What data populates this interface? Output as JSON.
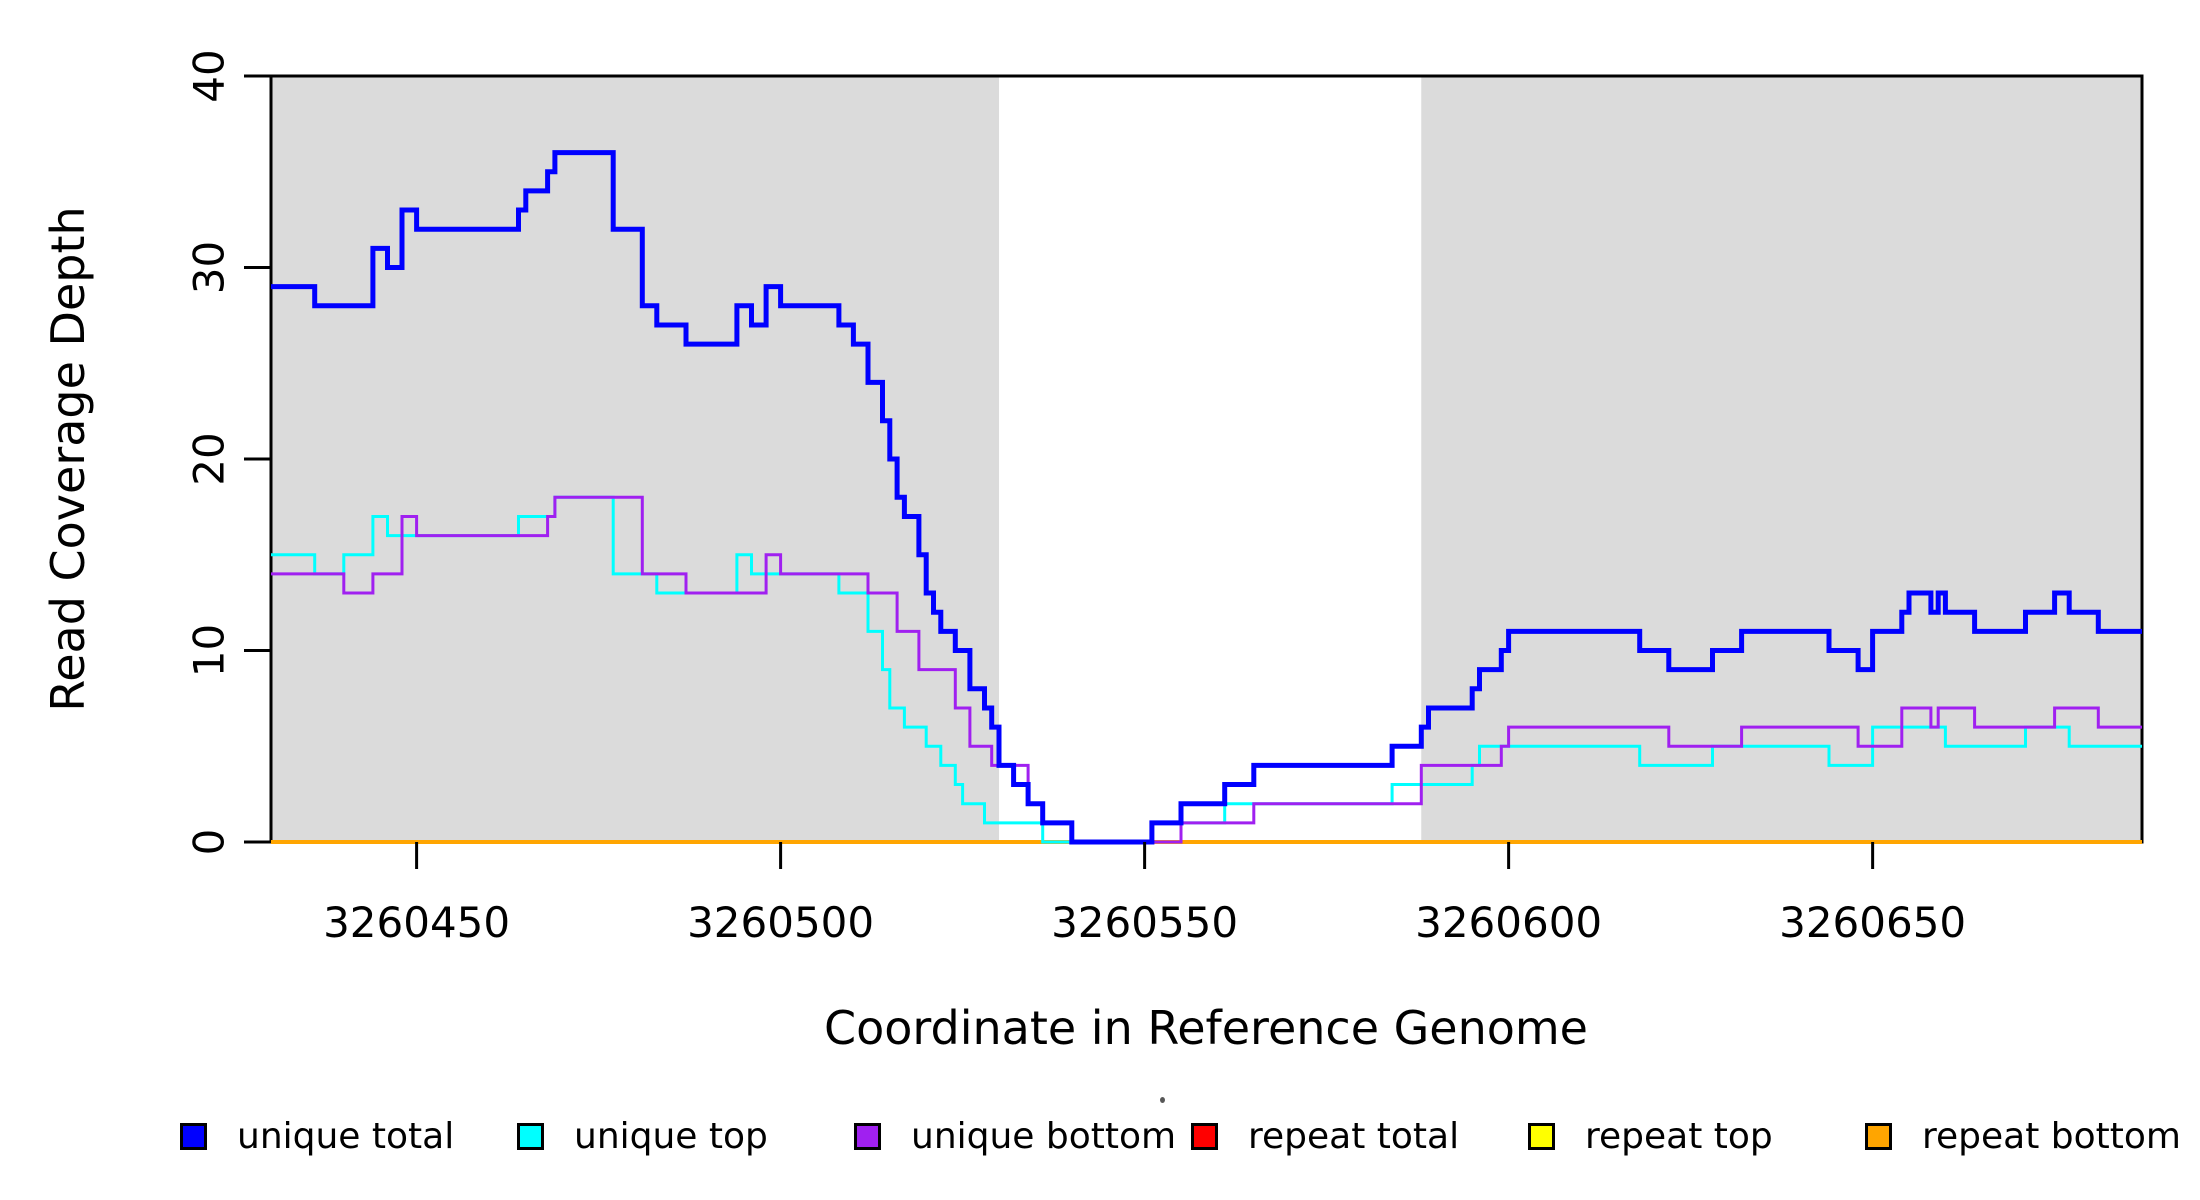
{
  "chart_data": {
    "type": "line",
    "subtype": "step-post",
    "title": "",
    "xlabel": "Coordinate in Reference Genome",
    "ylabel": "Read Coverage Depth",
    "xlim": [
      3260430,
      3260687
    ],
    "ylim": [
      0,
      40
    ],
    "x_ticks": [
      3260450,
      3260500,
      3260550,
      3260600,
      3260650
    ],
    "y_ticks": [
      0,
      10,
      20,
      30,
      40
    ],
    "grid": false,
    "legend_position": "bottom",
    "shade_color": "#dbdbdb",
    "background_color": "#ffffff",
    "shaded_regions": [
      {
        "x0": 3260430,
        "x1": 3260530
      },
      {
        "x0": 3260588,
        "x1": 3260687
      }
    ],
    "series": [
      {
        "name": "repeat total",
        "color": "#ff0000",
        "width": 4,
        "steps": [
          [
            3260430,
            0
          ]
        ]
      },
      {
        "name": "repeat top",
        "color": "#ffff00",
        "width": 4,
        "steps": [
          [
            3260430,
            0
          ]
        ]
      },
      {
        "name": "repeat bottom",
        "color": "#ffa500",
        "width": 4,
        "steps": [
          [
            3260430,
            0
          ]
        ]
      },
      {
        "name": "unique top",
        "color": "#00ffff",
        "width": 3,
        "steps": [
          [
            3260430,
            15
          ],
          [
            3260436,
            14
          ],
          [
            3260440,
            15
          ],
          [
            3260444,
            17
          ],
          [
            3260446,
            16
          ],
          [
            3260464,
            17
          ],
          [
            3260469,
            18
          ],
          [
            3260477,
            14
          ],
          [
            3260483,
            13
          ],
          [
            3260494,
            15
          ],
          [
            3260496,
            14
          ],
          [
            3260508,
            13
          ],
          [
            3260512,
            11
          ],
          [
            3260514,
            9
          ],
          [
            3260515,
            7
          ],
          [
            3260517,
            6
          ],
          [
            3260520,
            5
          ],
          [
            3260522,
            4
          ],
          [
            3260524,
            3
          ],
          [
            3260525,
            2
          ],
          [
            3260528,
            1
          ],
          [
            3260536,
            0
          ],
          [
            3260551,
            1
          ],
          [
            3260561,
            2
          ],
          [
            3260584,
            3
          ],
          [
            3260595,
            4
          ],
          [
            3260596,
            5
          ],
          [
            3260618,
            4
          ],
          [
            3260628,
            5
          ],
          [
            3260644,
            4
          ],
          [
            3260650,
            6
          ],
          [
            3260660,
            5
          ],
          [
            3260671,
            6
          ],
          [
            3260677,
            5
          ]
        ]
      },
      {
        "name": "unique bottom",
        "color": "#a020f0",
        "width": 3,
        "steps": [
          [
            3260430,
            14
          ],
          [
            3260440,
            13
          ],
          [
            3260444,
            14
          ],
          [
            3260448,
            17
          ],
          [
            3260450,
            16
          ],
          [
            3260468,
            17
          ],
          [
            3260469,
            18
          ],
          [
            3260481,
            14
          ],
          [
            3260487,
            13
          ],
          [
            3260498,
            15
          ],
          [
            3260500,
            14
          ],
          [
            3260512,
            13
          ],
          [
            3260516,
            11
          ],
          [
            3260519,
            9
          ],
          [
            3260524,
            7
          ],
          [
            3260526,
            5
          ],
          [
            3260529,
            4
          ],
          [
            3260534,
            2
          ],
          [
            3260536,
            1
          ],
          [
            3260540,
            0
          ],
          [
            3260555,
            1
          ],
          [
            3260565,
            2
          ],
          [
            3260588,
            4
          ],
          [
            3260599,
            5
          ],
          [
            3260600,
            6
          ],
          [
            3260622,
            5
          ],
          [
            3260632,
            6
          ],
          [
            3260648,
            5
          ],
          [
            3260654,
            7
          ],
          [
            3260658,
            6
          ],
          [
            3260659,
            7
          ],
          [
            3260664,
            6
          ],
          [
            3260675,
            7
          ],
          [
            3260681,
            6
          ]
        ]
      },
      {
        "name": "unique total",
        "color": "#0000ff",
        "width": 5,
        "steps": [
          [
            3260430,
            29
          ],
          [
            3260436,
            28
          ],
          [
            3260444,
            31
          ],
          [
            3260446,
            30
          ],
          [
            3260448,
            33
          ],
          [
            3260450,
            32
          ],
          [
            3260464,
            33
          ],
          [
            3260465,
            34
          ],
          [
            3260468,
            35
          ],
          [
            3260469,
            36
          ],
          [
            3260477,
            32
          ],
          [
            3260481,
            28
          ],
          [
            3260483,
            27
          ],
          [
            3260487,
            26
          ],
          [
            3260494,
            28
          ],
          [
            3260496,
            27
          ],
          [
            3260498,
            29
          ],
          [
            3260500,
            28
          ],
          [
            3260508,
            27
          ],
          [
            3260510,
            26
          ],
          [
            3260512,
            24
          ],
          [
            3260514,
            22
          ],
          [
            3260515,
            20
          ],
          [
            3260516,
            18
          ],
          [
            3260517,
            17
          ],
          [
            3260519,
            15
          ],
          [
            3260520,
            13
          ],
          [
            3260521,
            12
          ],
          [
            3260522,
            11
          ],
          [
            3260524,
            10
          ],
          [
            3260526,
            8
          ],
          [
            3260528,
            7
          ],
          [
            3260529,
            6
          ],
          [
            3260530,
            4
          ],
          [
            3260532,
            3
          ],
          [
            3260534,
            2
          ],
          [
            3260536,
            1
          ],
          [
            3260540,
            0
          ],
          [
            3260551,
            1
          ],
          [
            3260555,
            2
          ],
          [
            3260561,
            3
          ],
          [
            3260565,
            4
          ],
          [
            3260584,
            5
          ],
          [
            3260588,
            6
          ],
          [
            3260589,
            7
          ],
          [
            3260595,
            8
          ],
          [
            3260596,
            9
          ],
          [
            3260599,
            10
          ],
          [
            3260600,
            11
          ],
          [
            3260618,
            10
          ],
          [
            3260622,
            9
          ],
          [
            3260628,
            10
          ],
          [
            3260632,
            11
          ],
          [
            3260644,
            10
          ],
          [
            3260648,
            9
          ],
          [
            3260650,
            11
          ],
          [
            3260654,
            12
          ],
          [
            3260655,
            13
          ],
          [
            3260658,
            12
          ],
          [
            3260659,
            13
          ],
          [
            3260660,
            12
          ],
          [
            3260664,
            11
          ],
          [
            3260671,
            12
          ],
          [
            3260675,
            13
          ],
          [
            3260677,
            12
          ],
          [
            3260681,
            11
          ]
        ]
      }
    ],
    "legend": [
      {
        "label": "unique total",
        "color": "#0000ff"
      },
      {
        "label": "unique top",
        "color": "#00ffff"
      },
      {
        "label": "unique bottom",
        "color": "#a020f0"
      },
      {
        "label": "repeat total",
        "color": "#ff0000"
      },
      {
        "label": "repeat top",
        "color": "#ffff00"
      },
      {
        "label": "repeat bottom",
        "color": "#ffa500"
      }
    ]
  }
}
